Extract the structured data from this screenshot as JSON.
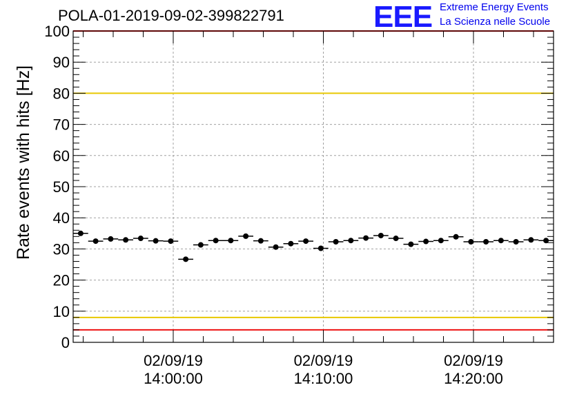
{
  "header": {
    "title": "POLA-01-2019-09-02-399822791",
    "logo_mark": "EEE",
    "logo_line1": "Extreme Energy Events",
    "logo_line2": "La Scienza nelle Scuole"
  },
  "chart_data": {
    "type": "scatter",
    "title": "POLA-01-2019-09-02-399822791",
    "ylabel": "Rate events with hits [Hz]",
    "xlabel": "",
    "ylim": [
      0,
      100
    ],
    "y_ticks": [
      0,
      10,
      20,
      30,
      40,
      50,
      60,
      70,
      80,
      90,
      100
    ],
    "x_axis_kind": "time",
    "x_range": [
      "2019-09-02 13:53:20",
      "2019-09-02 14:25:20"
    ],
    "x_ticks": [
      {
        "time": "2019-09-02 14:00:00",
        "date_label": "02/09/19",
        "time_label": "14:00:00"
      },
      {
        "time": "2019-09-02 14:10:00",
        "date_label": "02/09/19",
        "time_label": "14:10:00"
      },
      {
        "time": "2019-09-02 14:20:00",
        "date_label": "02/09/19",
        "time_label": "14:20:00"
      }
    ],
    "grid": true,
    "reference_lines": [
      {
        "y": 80,
        "color": "#e8c800"
      },
      {
        "y": 8,
        "color": "#e8c800"
      },
      {
        "y": 4,
        "color": "#ee1111"
      },
      {
        "y": 100,
        "color": "#ee1111"
      }
    ],
    "marker_color": "#000000",
    "series": [
      {
        "times": [
          "2019-09-02 13:53:50",
          "2019-09-02 13:54:50",
          "2019-09-02 13:55:50",
          "2019-09-02 13:56:50",
          "2019-09-02 13:57:50",
          "2019-09-02 13:58:50",
          "2019-09-02 13:59:50",
          "2019-09-02 14:00:50",
          "2019-09-02 14:01:50",
          "2019-09-02 14:02:50",
          "2019-09-02 14:03:50",
          "2019-09-02 14:04:50",
          "2019-09-02 14:05:50",
          "2019-09-02 14:06:50",
          "2019-09-02 14:07:50",
          "2019-09-02 14:08:50",
          "2019-09-02 14:09:50",
          "2019-09-02 14:10:50",
          "2019-09-02 14:11:50",
          "2019-09-02 14:12:50",
          "2019-09-02 14:13:50",
          "2019-09-02 14:14:50",
          "2019-09-02 14:15:50",
          "2019-09-02 14:16:50",
          "2019-09-02 14:17:50",
          "2019-09-02 14:18:50",
          "2019-09-02 14:19:50",
          "2019-09-02 14:20:50",
          "2019-09-02 14:21:50",
          "2019-09-02 14:22:50",
          "2019-09-02 14:23:50",
          "2019-09-02 14:24:50"
        ],
        "values": [
          35.0,
          32.5,
          33.2,
          32.9,
          33.4,
          32.6,
          32.5,
          26.7,
          31.3,
          32.7,
          32.7,
          34.1,
          32.6,
          30.6,
          31.7,
          32.5,
          30.2,
          32.3,
          32.7,
          33.5,
          34.3,
          33.4,
          31.5,
          32.4,
          32.7,
          33.9,
          32.3,
          32.3,
          32.7,
          32.3,
          32.9,
          32.7
        ]
      }
    ]
  }
}
